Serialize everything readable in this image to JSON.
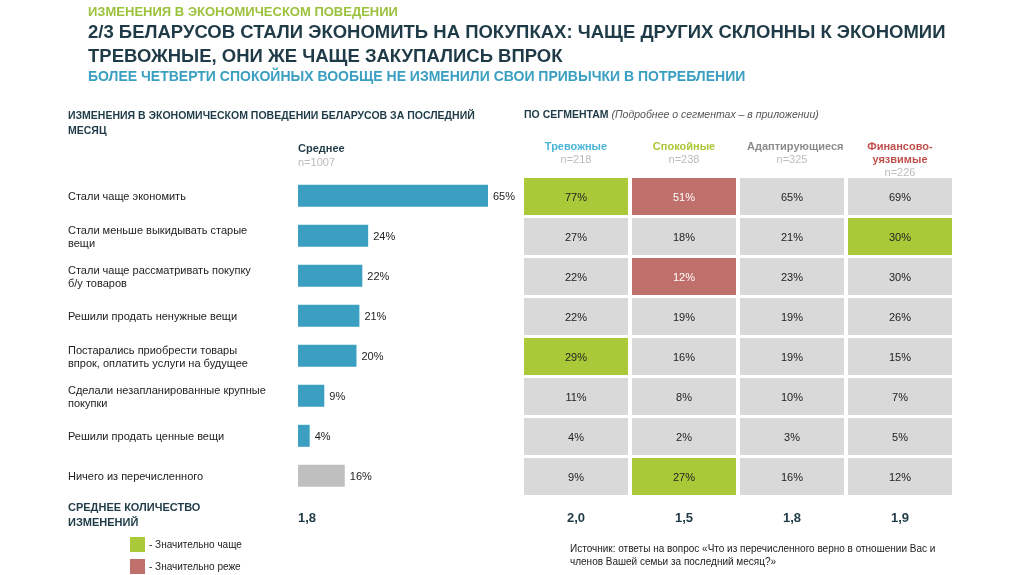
{
  "chart_data": [
    {
      "type": "bar",
      "orientation": "horizontal",
      "title": "2/3 БЕЛАРУСОВ СТАЛИ ЭКОНОМИТЬ НА ПОКУПКАХ: ЧАЩЕ ДРУГИХ СКЛОННЫ К ЭКОНОМИИ ТРЕВОЖНЫЕ, ОНИ ЖЕ ЧАЩЕ ЗАКУПАЛИСЬ ВПРОК",
      "subtitle": "БОЛЕЕ ЧЕТВЕРТИ СПОКОЙНЫХ ВООБЩЕ НЕ ИЗМЕНИЛИ СВОИ ПРИВЫЧКИ В ПОТРЕБЛЕНИИ",
      "categories": [
        "Стали чаще экономить",
        "Стали меньше выкидывать старые вещи",
        "Стали чаще рассматривать покупку б/у товаров",
        "Решили продать ненужные вещи",
        "Постарались приобрести товары впрок, оплатить услуги на будущее",
        "Сделали незапланированные крупные покупки",
        "Решили продать ценные вещи",
        "Ничего из перечисленного"
      ],
      "values": [
        65,
        24,
        22,
        21,
        20,
        9,
        4,
        16
      ],
      "colors": [
        "#3a9fc0",
        "#3a9fc0",
        "#3a9fc0",
        "#3a9fc0",
        "#3a9fc0",
        "#3a9fc0",
        "#3a9fc0",
        "#bfbfbf"
      ],
      "value_labels": [
        "65%",
        "24%",
        "22%",
        "21%",
        "20%",
        "9%",
        "4%",
        "16%"
      ],
      "annotations": [
        "ИЗМЕНЕНИЯ В ЭКОНОМИЧЕСКОМ ПОВЕДЕНИИ",
        "ИЗМЕНЕНИЯ В ЭКОНОМИЧЕСКОМ ПОВЕДЕНИИ БЕЛАРУСОВ ЗА ПОСЛЕДНИЙ МЕСЯЦ",
        "Среднее",
        "n=1007",
        "СРЕДНЕЕ КОЛИЧЕСТВО ИЗМЕНЕНИЙ",
        "1,8",
        "Источник: ответы на вопрос «Что из перечисленного верно в отношении Вас и членов Вашей семьи за последний месяц?»"
      ]
    },
    {
      "type": "heatmap",
      "title": "ПО СЕГМЕНТАМ",
      "subtitle": "(Подробнее о сегментах – в приложении)",
      "categories": [
        "Тревожные",
        "Спокойные",
        "Адаптирующиеся",
        "Финансово-уязвимые"
      ],
      "y_categories": [
        null,
        null,
        null,
        null,
        null,
        null,
        null,
        null
      ],
      "cells": [
        [
          77,
          51,
          65,
          69
        ],
        [
          27,
          18,
          21,
          30
        ],
        [
          22,
          12,
          23,
          30
        ],
        [
          22,
          19,
          19,
          26
        ],
        [
          29,
          16,
          19,
          15
        ],
        [
          11,
          8,
          10,
          7
        ],
        [
          4,
          2,
          3,
          5
        ],
        [
          9,
          27,
          16,
          12
        ]
      ],
      "cell_labels": [
        [
          "77%",
          "51%",
          "65%",
          "69%"
        ],
        [
          "27%",
          "18%",
          "21%",
          "30%"
        ],
        [
          "22%",
          "12%",
          "23%",
          "30%"
        ],
        [
          "22%",
          "19%",
          "19%",
          "26%"
        ],
        [
          "29%",
          "16%",
          "19%",
          "15%"
        ],
        [
          "11%",
          "8%",
          "10%",
          "7%"
        ],
        [
          "4%",
          "2%",
          "3%",
          "5%"
        ],
        [
          "9%",
          "27%",
          "16%",
          "12%"
        ]
      ],
      "colors": [
        [
          "#a9c938",
          "#c0706a",
          "#d9d9d9",
          "#d9d9d9"
        ],
        [
          "#d9d9d9",
          "#d9d9d9",
          "#d9d9d9",
          "#a9c938"
        ],
        [
          "#d9d9d9",
          "#c0706a",
          "#d9d9d9",
          "#d9d9d9"
        ],
        [
          "#d9d9d9",
          "#d9d9d9",
          "#d9d9d9",
          "#d9d9d9"
        ],
        [
          "#a9c938",
          "#d9d9d9",
          "#d9d9d9",
          "#d9d9d9"
        ],
        [
          "#d9d9d9",
          "#d9d9d9",
          "#d9d9d9",
          "#d9d9d9"
        ],
        [
          "#d9d9d9",
          "#d9d9d9",
          "#d9d9d9",
          "#d9d9d9"
        ],
        [
          "#d9d9d9",
          "#a9c938",
          "#d9d9d9",
          "#d9d9d9"
        ]
      ],
      "annotations": [
        "n=218",
        "n=238",
        "n=325",
        "n=226",
        "2,0",
        "1,5",
        "1,8",
        "1,9",
        "- Значительно чаще",
        "- Значительно реже"
      ]
    }
  ]
}
